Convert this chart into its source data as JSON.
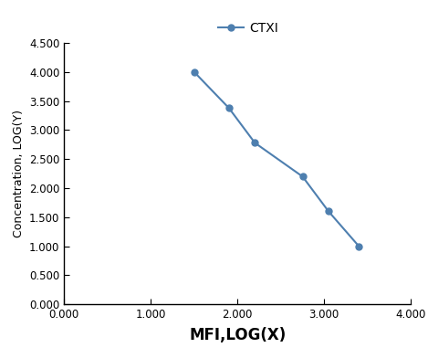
{
  "x": [
    1.5,
    1.9,
    2.2,
    2.75,
    3.05,
    3.4
  ],
  "y": [
    4.0,
    3.38,
    2.78,
    2.2,
    1.6,
    1.0
  ],
  "line_color": "#4e7faf",
  "marker": "o",
  "marker_size": 5,
  "legend_label": "CTXI",
  "xlabel": "MFI,LOG(X)",
  "ylabel": "Concentration, LOG(Y)",
  "xlim": [
    0.0,
    4.0
  ],
  "ylim": [
    0.0,
    4.5
  ],
  "xticks": [
    0.0,
    1.0,
    2.0,
    3.0,
    4.0
  ],
  "yticks": [
    0.0,
    0.5,
    1.0,
    1.5,
    2.0,
    2.5,
    3.0,
    3.5,
    4.0,
    4.5
  ],
  "xlabel_fontsize": 12,
  "ylabel_fontsize": 9,
  "tick_label_fontsize": 8.5,
  "legend_fontsize": 10,
  "background_color": "#ffffff"
}
